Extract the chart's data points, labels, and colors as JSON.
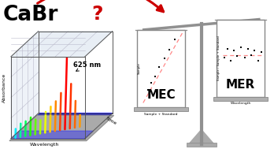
{
  "background_color": "#ffffff",
  "cabr_text": "CaBr",
  "question_mark": "?",
  "mec_label": "MEC",
  "mer_label": "MER",
  "arrow_color": "#cc0000",
  "scale_color": "#909090",
  "pan_label_mec": "Sample + Standard",
  "pan_label_mer": "Wavelength",
  "ylabel_mec": "Sample",
  "ylabel_mer": "Sample / Sample + Standard",
  "nm_label": "625 nm",
  "wavelength_axis": "Wavelength",
  "absorbance_axis": "Absorbance",
  "time_axis": "Time",
  "mec_scatter_x": [
    0.12,
    0.2,
    0.3,
    0.4,
    0.52,
    0.65,
    0.78
  ],
  "mec_scatter_y": [
    0.18,
    0.28,
    0.36,
    0.5,
    0.62,
    0.74,
    0.88
  ],
  "mer_scatter_x": [
    0.05,
    0.12,
    0.2,
    0.28,
    0.36,
    0.45,
    0.54,
    0.62,
    0.7,
    0.79,
    0.87,
    0.95
  ],
  "mer_scatter_y": [
    0.48,
    0.6,
    0.44,
    0.58,
    0.5,
    0.62,
    0.48,
    0.6,
    0.52,
    0.58,
    0.44,
    0.56
  ]
}
